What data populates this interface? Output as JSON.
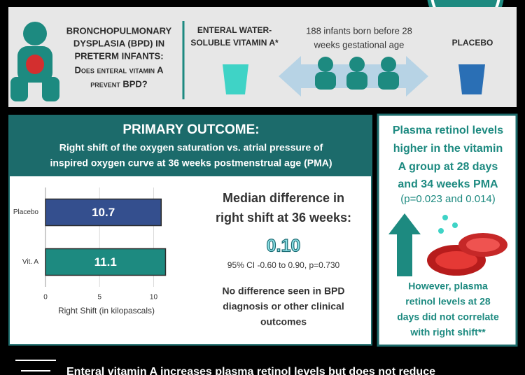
{
  "header": {
    "lines": [
      "BRONCHOPULMONARY",
      "DYSPLASIA (BPD) IN",
      "PRETERM INFANTS:",
      "Does enteral vitamin A",
      "prevent BPD?"
    ]
  },
  "intervention": {
    "lines": [
      "ENTERAL WATER-",
      "SOLUBLE VITAMIN A*"
    ]
  },
  "population": {
    "lines": [
      "188 infants born before 28",
      "weeks gestational age"
    ]
  },
  "control": {
    "label": "PLACEBO"
  },
  "primary_outcome": {
    "title": "PRIMARY OUTCOME:",
    "subtitle": [
      "Right shift of the oxygen saturation vs. atrial pressure of",
      "inspired oxygen curve at 36 weeks postmenstrual age (PMA)"
    ]
  },
  "chart_data": {
    "type": "bar",
    "orientation": "horizontal",
    "categories": [
      "Placebo",
      "Vit. A"
    ],
    "values": [
      10.7,
      11.1
    ],
    "colors": [
      "#344f8e",
      "#1d8a80"
    ],
    "xlim": [
      0,
      11.2
    ],
    "xticks": [
      0,
      5,
      10
    ],
    "grid": true,
    "xlabel": "Right Shift (in kilopascals)"
  },
  "result": {
    "heading": [
      "Median difference in",
      "right shift at 36 weeks:"
    ],
    "value": "0.10",
    "ci": "95% CI -0.60 to 0.90, p=0.730"
  },
  "note": {
    "lines": [
      "No difference seen in BPD",
      "diagnosis or other clinical",
      "outcomes"
    ]
  },
  "secondary": {
    "lines": [
      "Plasma retinol levels",
      "higher in the vitamin",
      "A group at 28 days",
      "and 34 weeks PMA"
    ],
    "p": "(p=0.023 and 0.014)"
  },
  "secondary_note": {
    "lines": [
      "However, plasma",
      "retinol levels at 28",
      "days did not correlate",
      "with right shift**"
    ]
  },
  "footer": {
    "text": "Enteral vitamin A increases plasma retinol levels but does not reduce"
  }
}
